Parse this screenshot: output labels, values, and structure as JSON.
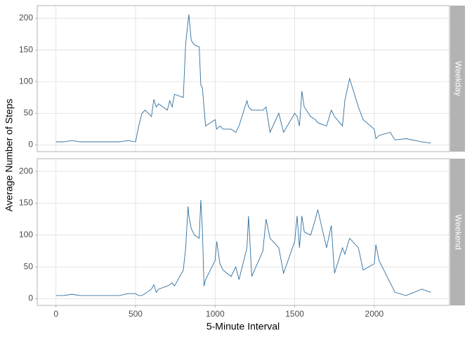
{
  "chart_data": {
    "type": "line",
    "x_label": "5-Minute Interval",
    "y_label": "Average Number of Steps",
    "x": [
      0,
      50,
      100,
      150,
      200,
      300,
      400,
      450,
      500,
      520,
      540,
      560,
      600,
      615,
      630,
      645,
      700,
      715,
      730,
      745,
      800,
      815,
      830,
      835,
      850,
      870,
      900,
      910,
      920,
      930,
      940,
      1000,
      1010,
      1030,
      1050,
      1100,
      1130,
      1150,
      1200,
      1210,
      1230,
      1300,
      1320,
      1345,
      1400,
      1430,
      1500,
      1515,
      1530,
      1545,
      1560,
      1600,
      1630,
      1645,
      1700,
      1730,
      1750,
      1800,
      1815,
      1845,
      1900,
      1930,
      2000,
      2010,
      2030,
      2100,
      2130,
      2200,
      2300,
      2355
    ],
    "series": [
      {
        "name": "Weekday",
        "color": "#2f6f9f",
        "values": [
          5,
          5,
          7,
          5,
          5,
          5,
          5,
          7,
          5,
          30,
          50,
          55,
          45,
          72,
          60,
          65,
          55,
          70,
          60,
          80,
          75,
          160,
          195,
          206,
          165,
          158,
          155,
          95,
          90,
          60,
          30,
          40,
          25,
          30,
          25,
          25,
          20,
          30,
          70,
          60,
          55,
          55,
          60,
          20,
          50,
          20,
          50,
          45,
          30,
          85,
          60,
          45,
          40,
          35,
          30,
          55,
          45,
          30,
          70,
          105,
          60,
          40,
          25,
          10,
          15,
          20,
          8,
          10,
          5,
          3
        ]
      },
      {
        "name": "Weekend",
        "color": "#2f6f9f",
        "values": [
          5,
          5,
          7,
          5,
          5,
          5,
          5,
          8,
          8,
          5,
          5,
          8,
          15,
          22,
          10,
          15,
          20,
          22,
          25,
          20,
          45,
          80,
          145,
          130,
          110,
          100,
          95,
          155,
          110,
          20,
          30,
          60,
          90,
          55,
          45,
          35,
          50,
          30,
          80,
          130,
          35,
          75,
          125,
          95,
          80,
          40,
          90,
          130,
          80,
          130,
          105,
          100,
          125,
          140,
          80,
          115,
          40,
          80,
          70,
          95,
          80,
          45,
          55,
          85,
          60,
          25,
          10,
          5,
          15,
          10
        ]
      }
    ],
    "xlim": [
      -117.75,
      2472.75
    ],
    "xticks": [
      0,
      500,
      1000,
      1500,
      2000
    ],
    "ylim": [
      -10.5,
      220
    ],
    "yticks": [
      0,
      50,
      100,
      150,
      200
    ],
    "grid": true
  }
}
